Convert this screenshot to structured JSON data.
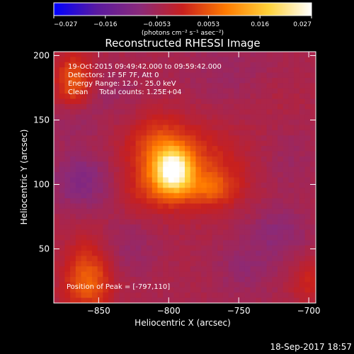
{
  "chart_data": {
    "type": "heatmap",
    "title": "Reconstructed RHESSI Image",
    "xlabel": "Heliocentric X (arcsec)",
    "ylabel": "Heliocentric Y (arcsec)",
    "xlim": [
      -882,
      -695
    ],
    "ylim": [
      8,
      203
    ],
    "x_ticks": [
      {
        "value": -850,
        "label": "−850"
      },
      {
        "value": -800,
        "label": "−800"
      },
      {
        "value": -750,
        "label": "−750"
      },
      {
        "value": -700,
        "label": "−700"
      }
    ],
    "y_ticks": [
      {
        "value": 50,
        "label": "50"
      },
      {
        "value": 100,
        "label": "100"
      },
      {
        "value": 150,
        "label": "150"
      },
      {
        "value": 200,
        "label": "200"
      }
    ],
    "colorbar": {
      "range": [
        -0.027,
        0.027
      ],
      "unit_label": "(photons cm⁻² s⁻¹ asec⁻²)",
      "ticks": [
        "−0.027",
        "−0.016",
        "−0.0053",
        "0.0053",
        "0.016",
        "0.027"
      ],
      "colormap": [
        "#0000ff",
        "#5a1aa0",
        "#8a2a7a",
        "#c8201e",
        "#ff7a00",
        "#ffd23a",
        "#ffffff"
      ]
    },
    "annotations": {
      "time_range": "19-Oct-2015 09:49:42.000 to 09:59:42.000",
      "detectors": "Detectors: 1F 5F 7F, Att 0",
      "energy_range": "Energy Range: 12.0 - 25.0 keV",
      "method": "Clean     Total counts: 1.25E+04",
      "peak_position": "Position of Peak = [-797,110]"
    },
    "peak": {
      "x": -797,
      "y": 110
    },
    "sources": [
      {
        "x": -797,
        "y": 110,
        "amp": 0.027,
        "sx": 9,
        "sy": 12
      },
      {
        "x": -787,
        "y": 113,
        "amp": 0.008,
        "sx": 28,
        "sy": 22
      },
      {
        "x": -808,
        "y": 130,
        "amp": 0.006,
        "sx": 14,
        "sy": 18
      },
      {
        "x": -770,
        "y": 97,
        "amp": 0.007,
        "sx": 12,
        "sy": 9
      },
      {
        "x": -818,
        "y": 93,
        "amp": 0.003,
        "sx": 10,
        "sy": 12
      },
      {
        "x": -868,
        "y": 180,
        "amp": 0.01,
        "sx": 9,
        "sy": 15
      },
      {
        "x": -858,
        "y": 25,
        "amp": 0.011,
        "sx": 12,
        "sy": 16
      },
      {
        "x": -855,
        "y": 55,
        "amp": 0.002,
        "sx": 12,
        "sy": 14
      },
      {
        "x": -700,
        "y": 25,
        "amp": 0.005,
        "sx": 9,
        "sy": 12
      },
      {
        "x": -720,
        "y": 165,
        "amp": 0.001,
        "sx": 14,
        "sy": 14
      },
      {
        "x": -758,
        "y": 188,
        "amp": -0.002,
        "sx": 22,
        "sy": 18
      },
      {
        "x": -862,
        "y": 103,
        "amp": -0.006,
        "sx": 15,
        "sy": 15
      },
      {
        "x": -868,
        "y": 150,
        "amp": -0.003,
        "sx": 12,
        "sy": 12
      },
      {
        "x": -722,
        "y": 63,
        "amp": -0.004,
        "sx": 15,
        "sy": 14
      },
      {
        "x": -745,
        "y": 35,
        "amp": -0.003,
        "sx": 15,
        "sy": 15
      },
      {
        "x": -830,
        "y": 52,
        "amp": -0.003,
        "sx": 14,
        "sy": 16
      },
      {
        "x": -715,
        "y": 118,
        "amp": -0.002,
        "sx": 14,
        "sy": 18
      },
      {
        "x": -840,
        "y": 170,
        "amp": -0.002,
        "sx": 14,
        "sy": 12
      }
    ],
    "background": -0.0045
  },
  "footer": {
    "timestamp": "18-Sep-2017 18:57"
  }
}
